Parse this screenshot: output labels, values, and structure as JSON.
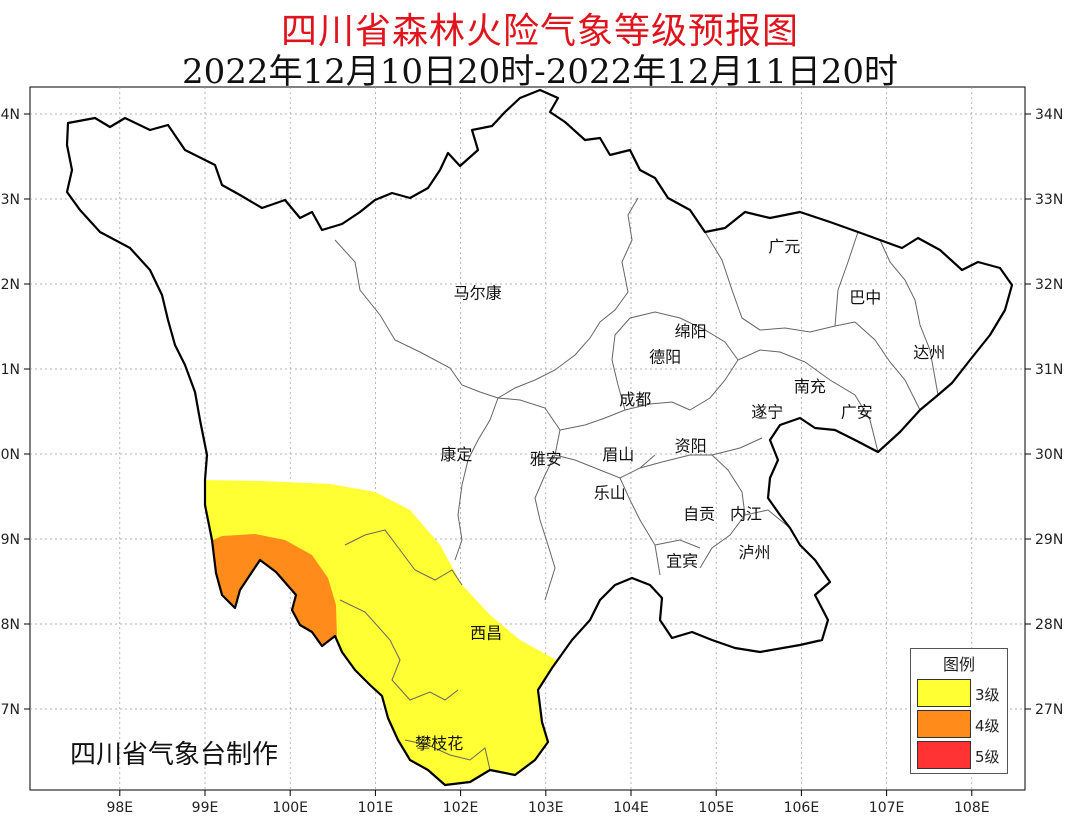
{
  "header": {
    "title": "四川省森林火险气象等级预报图",
    "subtitle": "2022年12月10日20时-2022年12月11日20时"
  },
  "credit": "四川省气象台制作",
  "axes": {
    "lat_labels": [
      "34N",
      "33N",
      "32N",
      "31N",
      "30N",
      "29N",
      "28N",
      "27N"
    ],
    "lon_labels": [
      "98E",
      "99E",
      "100E",
      "101E",
      "102E",
      "103E",
      "104E",
      "105E",
      "106E",
      "107E",
      "108E"
    ],
    "lat_values": [
      34,
      33,
      32,
      31,
      30,
      29,
      28,
      27
    ],
    "lon_values": [
      98,
      99,
      100,
      101,
      102,
      103,
      104,
      105,
      106,
      107,
      108
    ]
  },
  "cities": [
    {
      "name": "广元",
      "lon": 105.8,
      "lat": 32.45
    },
    {
      "name": "巴中",
      "lon": 106.75,
      "lat": 31.85
    },
    {
      "name": "马尔康",
      "lon": 102.2,
      "lat": 31.9
    },
    {
      "name": "绵阳",
      "lon": 104.7,
      "lat": 31.45
    },
    {
      "name": "达州",
      "lon": 107.5,
      "lat": 31.2
    },
    {
      "name": "德阳",
      "lon": 104.4,
      "lat": 31.15
    },
    {
      "name": "南充",
      "lon": 106.1,
      "lat": 30.8
    },
    {
      "name": "成都",
      "lon": 104.05,
      "lat": 30.65
    },
    {
      "name": "遂宁",
      "lon": 105.6,
      "lat": 30.5
    },
    {
      "name": "广安",
      "lon": 106.65,
      "lat": 30.5
    },
    {
      "name": "康定",
      "lon": 101.95,
      "lat": 30.0
    },
    {
      "name": "资阳",
      "lon": 104.7,
      "lat": 30.1
    },
    {
      "name": "雅安",
      "lon": 103.0,
      "lat": 29.95
    },
    {
      "name": "眉山",
      "lon": 103.85,
      "lat": 30.0
    },
    {
      "name": "乐山",
      "lon": 103.75,
      "lat": 29.55
    },
    {
      "name": "自贡",
      "lon": 104.8,
      "lat": 29.3
    },
    {
      "name": "内江",
      "lon": 105.35,
      "lat": 29.3
    },
    {
      "name": "泸州",
      "lon": 105.45,
      "lat": 28.85
    },
    {
      "name": "宜宾",
      "lon": 104.6,
      "lat": 28.75
    },
    {
      "name": "西昌",
      "lon": 102.3,
      "lat": 27.9
    },
    {
      "name": "攀枝花",
      "lon": 101.75,
      "lat": 26.6
    }
  ],
  "legend": {
    "title": "图例",
    "items": [
      {
        "label": "3级",
        "color": "#ffff33"
      },
      {
        "label": "4级",
        "color": "#ff8c1a"
      },
      {
        "label": "5级",
        "color": "#ff3333"
      }
    ]
  },
  "colors": {
    "level3": "#ffff33",
    "level4": "#ff8c1a",
    "boundary": "#000000",
    "prefecture_line": "#555555",
    "grid": "#999999"
  }
}
